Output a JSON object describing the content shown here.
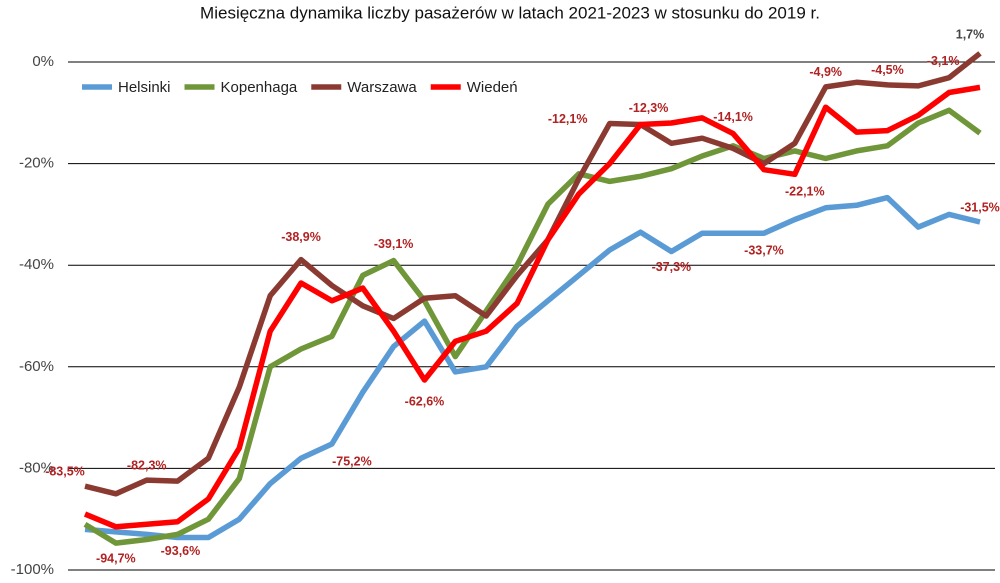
{
  "chart_data": {
    "type": "line",
    "title": "Miesięczna dynamika liczby pasażerów w latach 2021-2023 w stosunku do 2019 r.",
    "categories": [
      null,
      null,
      null,
      null,
      null,
      null,
      null,
      null,
      null,
      null,
      null,
      null,
      null,
      null,
      null,
      null,
      null,
      null,
      null,
      null,
      null,
      null,
      null,
      null,
      null,
      null,
      null,
      null,
      null,
      null
    ],
    "series": [
      {
        "name": "Helsinki",
        "color": "#5b9bd5",
        "values": [
          -92,
          -92.5,
          -93,
          -93.6,
          -93.6,
          -90,
          -83,
          -78,
          -75.2,
          -65,
          -56,
          -51,
          -61,
          -60,
          -52,
          -47,
          -42,
          -37,
          -33.5,
          -37.3,
          -33.7,
          -33.7,
          -33.7,
          -31,
          -28.7,
          -28.2,
          -26.7,
          -32.5,
          -30,
          -31.5
        ],
        "value_labels": [
          null,
          null,
          null,
          null,
          "-93,6%",
          null,
          null,
          null,
          "-75,2%",
          null,
          null,
          null,
          null,
          null,
          null,
          null,
          null,
          null,
          null,
          "-37,3%",
          null,
          null,
          "-33,7%",
          null,
          null,
          null,
          null,
          null,
          null,
          "-31,5%"
        ]
      },
      {
        "name": "Kopenhaga",
        "color": "#70963a",
        "values": [
          -91,
          -94.7,
          -94,
          -93,
          -90,
          -82,
          -60,
          -56.5,
          -54,
          -42,
          -39.1,
          -47,
          -58,
          -49,
          -40,
          -28,
          -22,
          -23.5,
          -22.5,
          -21,
          -18.5,
          -16.5,
          -19,
          -17.5,
          -19,
          -17.5,
          -16.5,
          -12,
          -9.5,
          -14
        ],
        "value_labels": [
          null,
          "-94,7%",
          null,
          null,
          null,
          null,
          null,
          null,
          null,
          null,
          "-39,1%",
          null,
          null,
          null,
          null,
          null,
          null,
          null,
          null,
          null,
          null,
          null,
          null,
          null,
          null,
          null,
          null,
          null,
          null,
          null
        ]
      },
      {
        "name": "Warszawa",
        "color": "#8b3a32",
        "values": [
          -83.5,
          -85,
          -82.3,
          -82.5,
          -78,
          -64,
          -46,
          -38.9,
          -44,
          -48,
          -50.5,
          -46.5,
          -46,
          -50,
          -42,
          -35,
          -23,
          -12.1,
          -12.3,
          -16,
          -15,
          -17,
          -20,
          -16,
          -4.9,
          -4,
          -4.5,
          -4.7,
          -3.1,
          1.7
        ],
        "value_labels": [
          "-83,5%",
          null,
          "-82,3%",
          null,
          null,
          null,
          null,
          "-38,9%",
          null,
          null,
          null,
          null,
          null,
          null,
          null,
          null,
          null,
          "-12,1%",
          null,
          null,
          null,
          null,
          null,
          null,
          "-4,9%",
          null,
          "-4,5%",
          null,
          "-3,1%",
          "1,7%"
        ]
      },
      {
        "name": "Wiedeń",
        "color": "#ff0000",
        "values": [
          -89,
          -91.5,
          -91,
          -90.5,
          -86,
          -76,
          -53,
          -43.5,
          -47,
          -44.5,
          -53,
          -62.6,
          -55,
          -53,
          -47.5,
          -35,
          -26,
          -20,
          -12.3,
          -12,
          -11,
          -14.1,
          -21.2,
          -22.1,
          -8.9,
          -13.8,
          -13.5,
          -10.5,
          -6,
          -5
        ],
        "value_labels": [
          null,
          null,
          null,
          null,
          null,
          null,
          null,
          null,
          null,
          null,
          null,
          "-62,6%",
          null,
          null,
          null,
          null,
          null,
          null,
          "-12,3%",
          null,
          null,
          "-14,1%",
          null,
          "-22,1%",
          null,
          null,
          null,
          null,
          null,
          null
        ]
      }
    ],
    "ylim": [
      -100,
      5
    ],
    "yticks": [
      {
        "value": 0,
        "label": "0%"
      },
      {
        "value": -20,
        "label": "-20%"
      },
      {
        "value": -40,
        "label": "-40%"
      },
      {
        "value": -60,
        "label": "-60%"
      },
      {
        "value": -80,
        "label": "-80%"
      },
      {
        "value": -100,
        "label": "-100%"
      }
    ],
    "grid": true,
    "legend": "top-left"
  }
}
